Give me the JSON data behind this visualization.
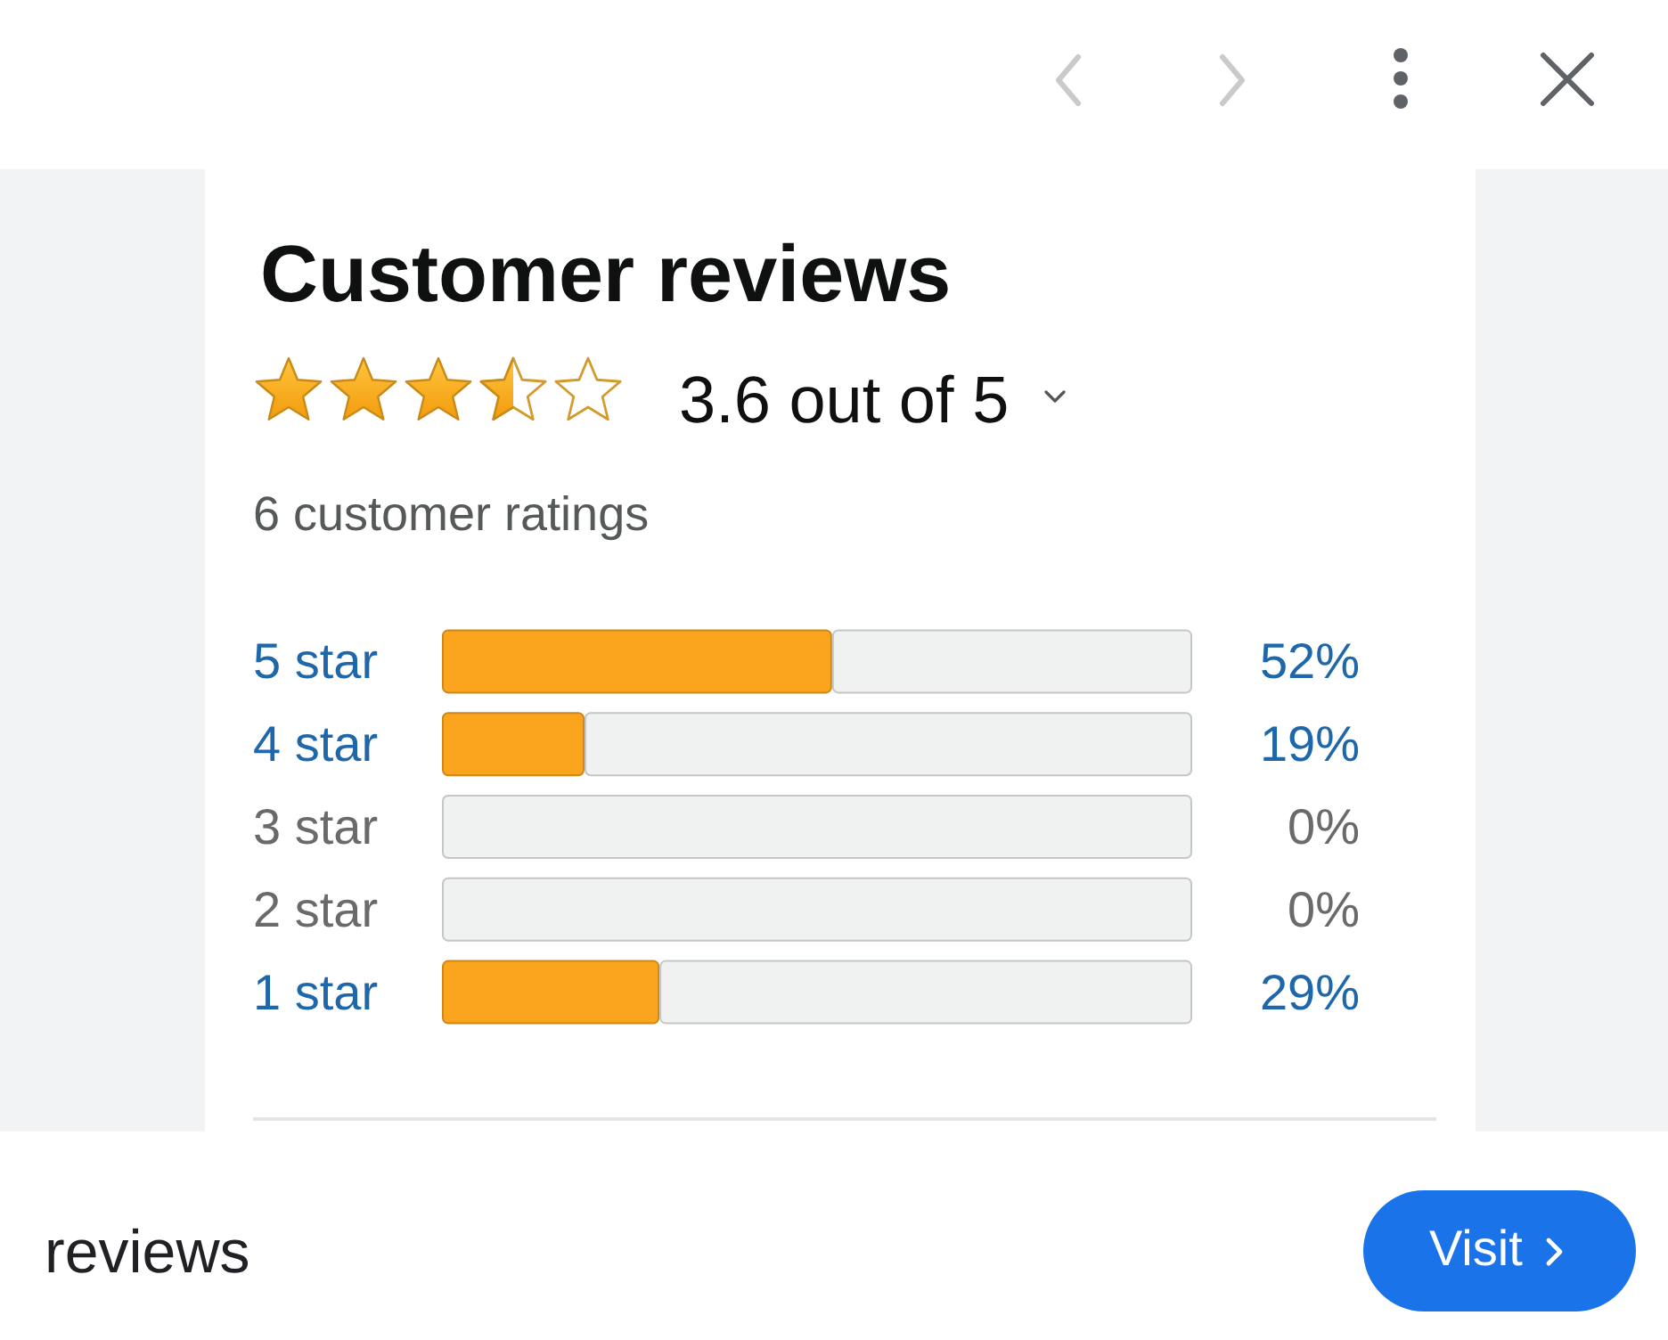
{
  "chart_data": {
    "type": "bar",
    "orientation": "horizontal",
    "stacked": true,
    "title": "Customer reviews",
    "subtitle": "3.6 out of 5",
    "categories": [
      "5 star",
      "4 star",
      "3 star",
      "2 star",
      "1 star"
    ],
    "series": [
      {
        "color": "#fba51f",
        "values": [
          52,
          19,
          0,
          0,
          29
        ],
        "value_labels": [
          "52%",
          "19%",
          "0%",
          "0%",
          "29%"
        ]
      },
      {
        "color": "#f0f1f1",
        "values": [
          48,
          81,
          100,
          100,
          71
        ]
      }
    ],
    "xlim": [
      0,
      100
    ],
    "tick_labels": "y",
    "annotations": [
      "6 customer ratings",
      "reviews",
      "Visit"
    ]
  }
}
